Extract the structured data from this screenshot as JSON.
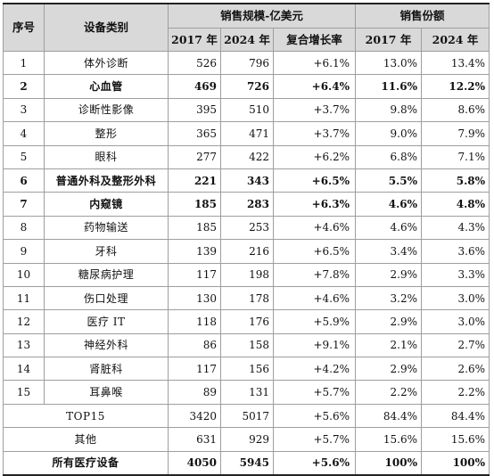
{
  "header": {
    "col_idx": "序号",
    "col_category": "设备类别",
    "group_sales": "销售规模-亿美元",
    "group_share": "销售份额",
    "sales_2017": "2017 年",
    "sales_2024": "2024 年",
    "cagr": "复合增长率",
    "share_2017": "2017 年",
    "share_2024": "2024 年"
  },
  "rows": [
    {
      "idx": "1",
      "name": "体外诊断",
      "s2017": "526",
      "s2024": "796",
      "cagr": "+6.1%",
      "p2017": "13.0%",
      "p2024": "13.4%",
      "bold": false
    },
    {
      "idx": "2",
      "name": "心血管",
      "s2017": "469",
      "s2024": "726",
      "cagr": "+6.4%",
      "p2017": "11.6%",
      "p2024": "12.2%",
      "bold": true
    },
    {
      "idx": "3",
      "name": "诊断性影像",
      "s2017": "395",
      "s2024": "510",
      "cagr": "+3.7%",
      "p2017": "9.8%",
      "p2024": "8.6%",
      "bold": false
    },
    {
      "idx": "4",
      "name": "整形",
      "s2017": "365",
      "s2024": "471",
      "cagr": "+3.7%",
      "p2017": "9.0%",
      "p2024": "7.9%",
      "bold": false
    },
    {
      "idx": "5",
      "name": "眼科",
      "s2017": "277",
      "s2024": "422",
      "cagr": "+6.2%",
      "p2017": "6.8%",
      "p2024": "7.1%",
      "bold": false
    },
    {
      "idx": "6",
      "name": "普通外科及整形外科",
      "s2017": "221",
      "s2024": "343",
      "cagr": "+6.5%",
      "p2017": "5.5%",
      "p2024": "5.8%",
      "bold": true
    },
    {
      "idx": "7",
      "name": "内窥镜",
      "s2017": "185",
      "s2024": "283",
      "cagr": "+6.3%",
      "p2017": "4.6%",
      "p2024": "4.8%",
      "bold": true
    },
    {
      "idx": "8",
      "name": "药物输送",
      "s2017": "185",
      "s2024": "253",
      "cagr": "+4.6%",
      "p2017": "4.6%",
      "p2024": "4.3%",
      "bold": false
    },
    {
      "idx": "9",
      "name": "牙科",
      "s2017": "139",
      "s2024": "216",
      "cagr": "+6.5%",
      "p2017": "3.4%",
      "p2024": "3.6%",
      "bold": false
    },
    {
      "idx": "10",
      "name": "糖尿病护理",
      "s2017": "117",
      "s2024": "198",
      "cagr": "+7.8%",
      "p2017": "2.9%",
      "p2024": "3.3%",
      "bold": false
    },
    {
      "idx": "11",
      "name": "伤口处理",
      "s2017": "130",
      "s2024": "178",
      "cagr": "+4.6%",
      "p2017": "3.2%",
      "p2024": "3.0%",
      "bold": false
    },
    {
      "idx": "12",
      "name": "医疗 IT",
      "s2017": "118",
      "s2024": "176",
      "cagr": "+5.9%",
      "p2017": "2.9%",
      "p2024": "3.0%",
      "bold": false
    },
    {
      "idx": "13",
      "name": "神经外科",
      "s2017": "86",
      "s2024": "158",
      "cagr": "+9.1%",
      "p2017": "2.1%",
      "p2024": "2.7%",
      "bold": false
    },
    {
      "idx": "14",
      "name": "肾脏科",
      "s2017": "117",
      "s2024": "156",
      "cagr": "+4.2%",
      "p2017": "2.9%",
      "p2024": "2.6%",
      "bold": false
    },
    {
      "idx": "15",
      "name": "耳鼻喉",
      "s2017": "89",
      "s2024": "131",
      "cagr": "+5.7%",
      "p2017": "2.2%",
      "p2024": "2.2%",
      "bold": false
    }
  ],
  "summary": [
    {
      "name": "TOP15",
      "s2017": "3420",
      "s2024": "5017",
      "cagr": "+5.6%",
      "p2017": "84.4%",
      "p2024": "84.4%",
      "bold": false
    },
    {
      "name": "其他",
      "s2017": "631",
      "s2024": "929",
      "cagr": "+5.7%",
      "p2017": "15.6%",
      "p2024": "15.6%",
      "bold": false
    },
    {
      "name": "所有医疗设备",
      "s2017": "4050",
      "s2024": "5945",
      "cagr": "+5.6%",
      "p2017": "100%",
      "p2024": "100%",
      "bold": true
    }
  ]
}
